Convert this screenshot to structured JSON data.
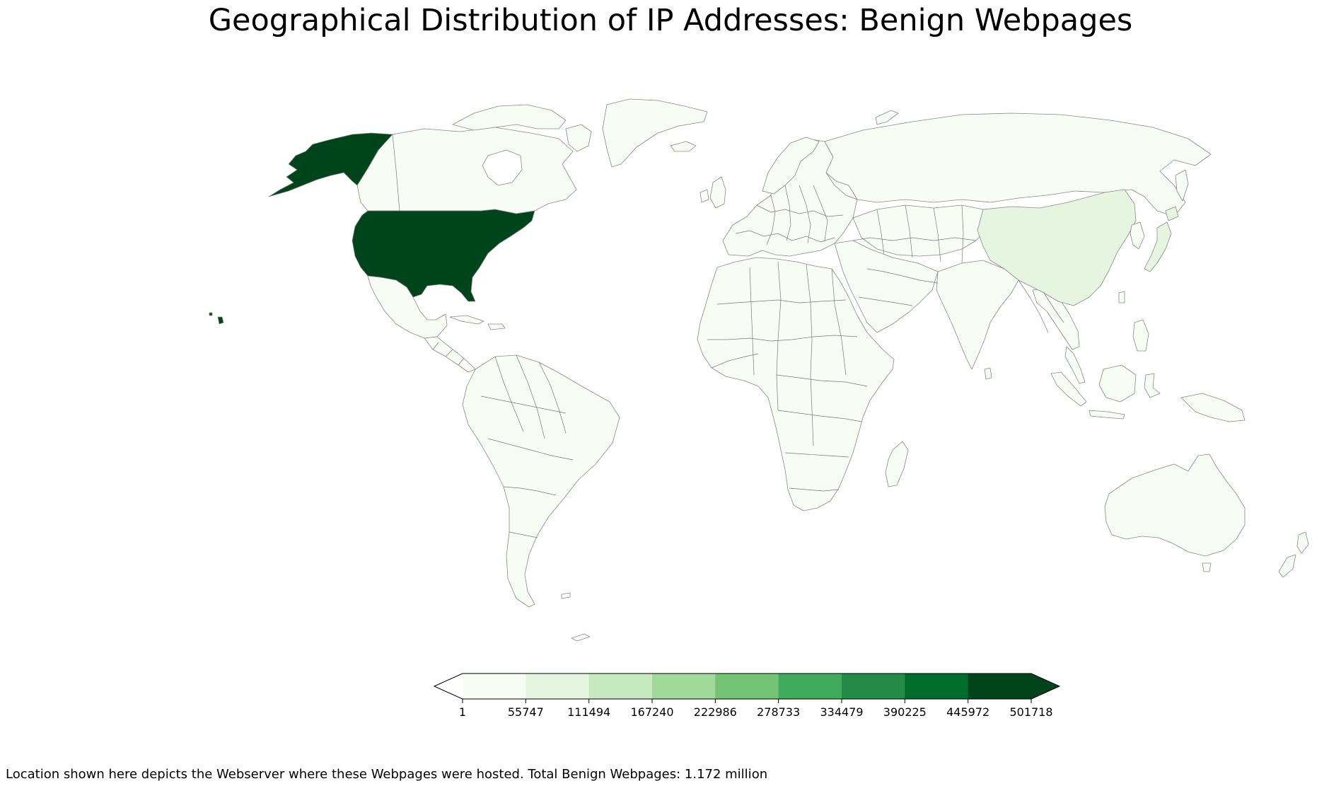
{
  "title": "Geographical Distribution of IP Addresses: Benign Webpages",
  "caption": "Location shown here depicts the Webserver where these Webpages were hosted. Total Benign Webpages: 1.172 million",
  "colorbar": {
    "ticks": [
      "1",
      "55747",
      "111494",
      "167240",
      "222986",
      "278733",
      "334479",
      "390225",
      "445972",
      "501718"
    ],
    "colors": [
      "#f7fcf5",
      "#e5f5e0",
      "#c7e9c0",
      "#a1d99b",
      "#74c476",
      "#41ab5d",
      "#238b45",
      "#006d2c",
      "#00441b"
    ],
    "under_color": "#ffffff",
    "over_color": "#00441b",
    "extend": "both"
  },
  "map_data": {
    "projection": "plate carree",
    "regions": [
      {
        "name": "United States",
        "bin": 8
      },
      {
        "name": "China",
        "bin": 1
      },
      {
        "name": "Japan",
        "bin": 1
      },
      {
        "name": "Rest of world",
        "bin": 0
      }
    ]
  }
}
